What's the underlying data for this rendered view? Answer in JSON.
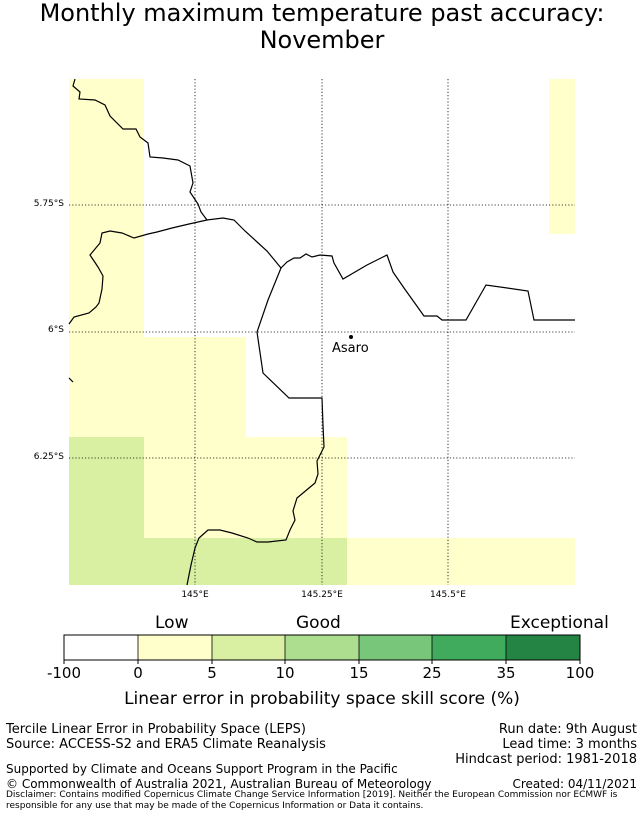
{
  "title_line1": "Monthly maximum temperature past accuracy:",
  "title_line2": "November",
  "map": {
    "lat_ticks": [
      "5.75°S",
      "6°S",
      "6.25°S"
    ],
    "lon_ticks": [
      "145°E",
      "145.25°E",
      "145.5°E"
    ],
    "place_name": "Asaro",
    "colors": {
      "low": "#ffffcc",
      "low_mid": "#d9f0a3",
      "coast": "#000000",
      "grid": "#000000"
    }
  },
  "colorbar": {
    "category_labels": [
      "Low",
      "Good",
      "Exceptional"
    ],
    "ticks": [
      "-100",
      "0",
      "5",
      "10",
      "15",
      "25",
      "35",
      "100"
    ],
    "colors": [
      "#ffffff",
      "#ffffcc",
      "#d9f0a3",
      "#addd8e",
      "#78c679",
      "#41ab5d",
      "#238443"
    ],
    "title": "Linear error in probability space skill score (%)"
  },
  "footer": {
    "method": "Tercile Linear Error in Probability Space (LEPS)",
    "source": "Source: ACCESS-S2 and ERA5 Climate Reanalysis",
    "run_date": "Run date: 9th August",
    "lead_time": "Lead time: 3 months",
    "hindcast": "Hindcast period: 1981-2018",
    "support": "Supported by Climate and Oceans Support Program in the Pacific",
    "copyright": "© Commonwealth of Australia 2021, Australian Bureau of Meteorology",
    "created": "Created: 04/11/2021",
    "disclaimer": "Disclaimer: Contains modified Copernicus Climate Change Service Information [2019]. Neither the European Commission nor ECMWF is responsible for any use that may be made of the Copernicus Information or Data it contains."
  }
}
